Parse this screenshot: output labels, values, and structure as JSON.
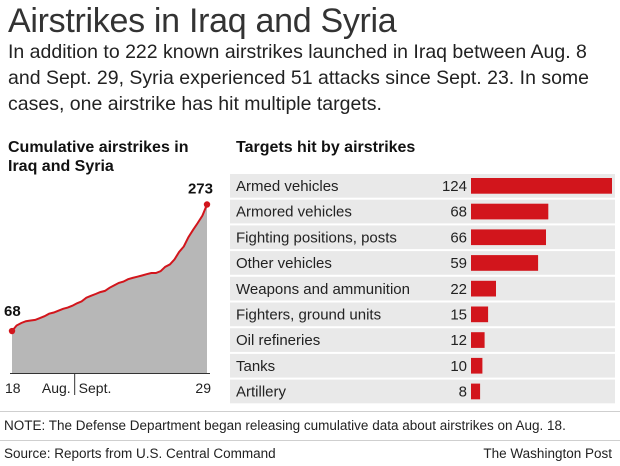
{
  "title": "Airstrikes in Iraq and Syria",
  "dek": "In addition to 222 known airstrikes launched in Iraq between Aug. 8 and Sept. 29, Syria experienced 51 attacks since Sept. 23. In some cases, one airstrike has hit multiple targets.",
  "note": "NOTE: The Defense Department began releasing cumulative data about airstrikes on Aug. 18.",
  "source": "Source: Reports from U.S. Central Command",
  "credit": "The Washington Post",
  "colors": {
    "accent": "#d2151c",
    "area": "#b7b7b7"
  },
  "chart_data": [
    {
      "type": "area",
      "title": "Cumulative airstrikes in Iraq and Syria",
      "x_tick_labels": [
        "18",
        "Aug.",
        "Sept.",
        "29"
      ],
      "x_range_days_labels": [
        "Aug. 18",
        "Sept. 29"
      ],
      "start_label": "68",
      "end_label": "273",
      "series": [
        {
          "x": [
            "Aug. 18",
            "Aug. 19",
            "Aug. 20",
            "Aug. 21",
            "Aug. 22",
            "Aug. 23",
            "Aug. 24",
            "Aug. 25",
            "Aug. 26",
            "Aug. 27",
            "Aug. 28",
            "Aug. 29",
            "Aug. 30",
            "Aug. 31",
            "Sept. 1",
            "Sept. 2",
            "Sept. 3",
            "Sept. 4",
            "Sept. 5",
            "Sept. 6",
            "Sept. 7",
            "Sept. 8",
            "Sept. 9",
            "Sept. 10",
            "Sept. 11",
            "Sept. 12",
            "Sept. 13",
            "Sept. 14",
            "Sept. 15",
            "Sept. 16",
            "Sept. 17",
            "Sept. 18",
            "Sept. 19",
            "Sept. 20",
            "Sept. 21",
            "Sept. 22",
            "Sept. 23",
            "Sept. 24",
            "Sept. 25",
            "Sept. 26",
            "Sept. 27",
            "Sept. 28",
            "Sept. 29"
          ],
          "values": [
            68,
            77,
            81,
            84,
            85,
            86,
            89,
            92,
            96,
            98,
            101,
            104,
            106,
            109,
            113,
            116,
            122,
            125,
            128,
            131,
            133,
            138,
            142,
            146,
            148,
            152,
            154,
            156,
            158,
            160,
            162,
            162,
            165,
            172,
            176,
            184,
            196,
            205,
            220,
            232,
            243,
            255,
            273
          ]
        }
      ],
      "ylim": [
        0,
        290
      ]
    },
    {
      "type": "bar",
      "title": "Targets hit by airstrikes",
      "categories": [
        "Armed vehicles",
        "Armored vehicles",
        "Fighting positions, posts",
        "Other vehicles",
        "Weapons and ammunition",
        "Fighters, ground units",
        "Oil refineries",
        "Tanks",
        "Artillery"
      ],
      "values": [
        124,
        68,
        66,
        59,
        22,
        15,
        12,
        10,
        8
      ],
      "xlim": [
        0,
        124
      ]
    }
  ]
}
